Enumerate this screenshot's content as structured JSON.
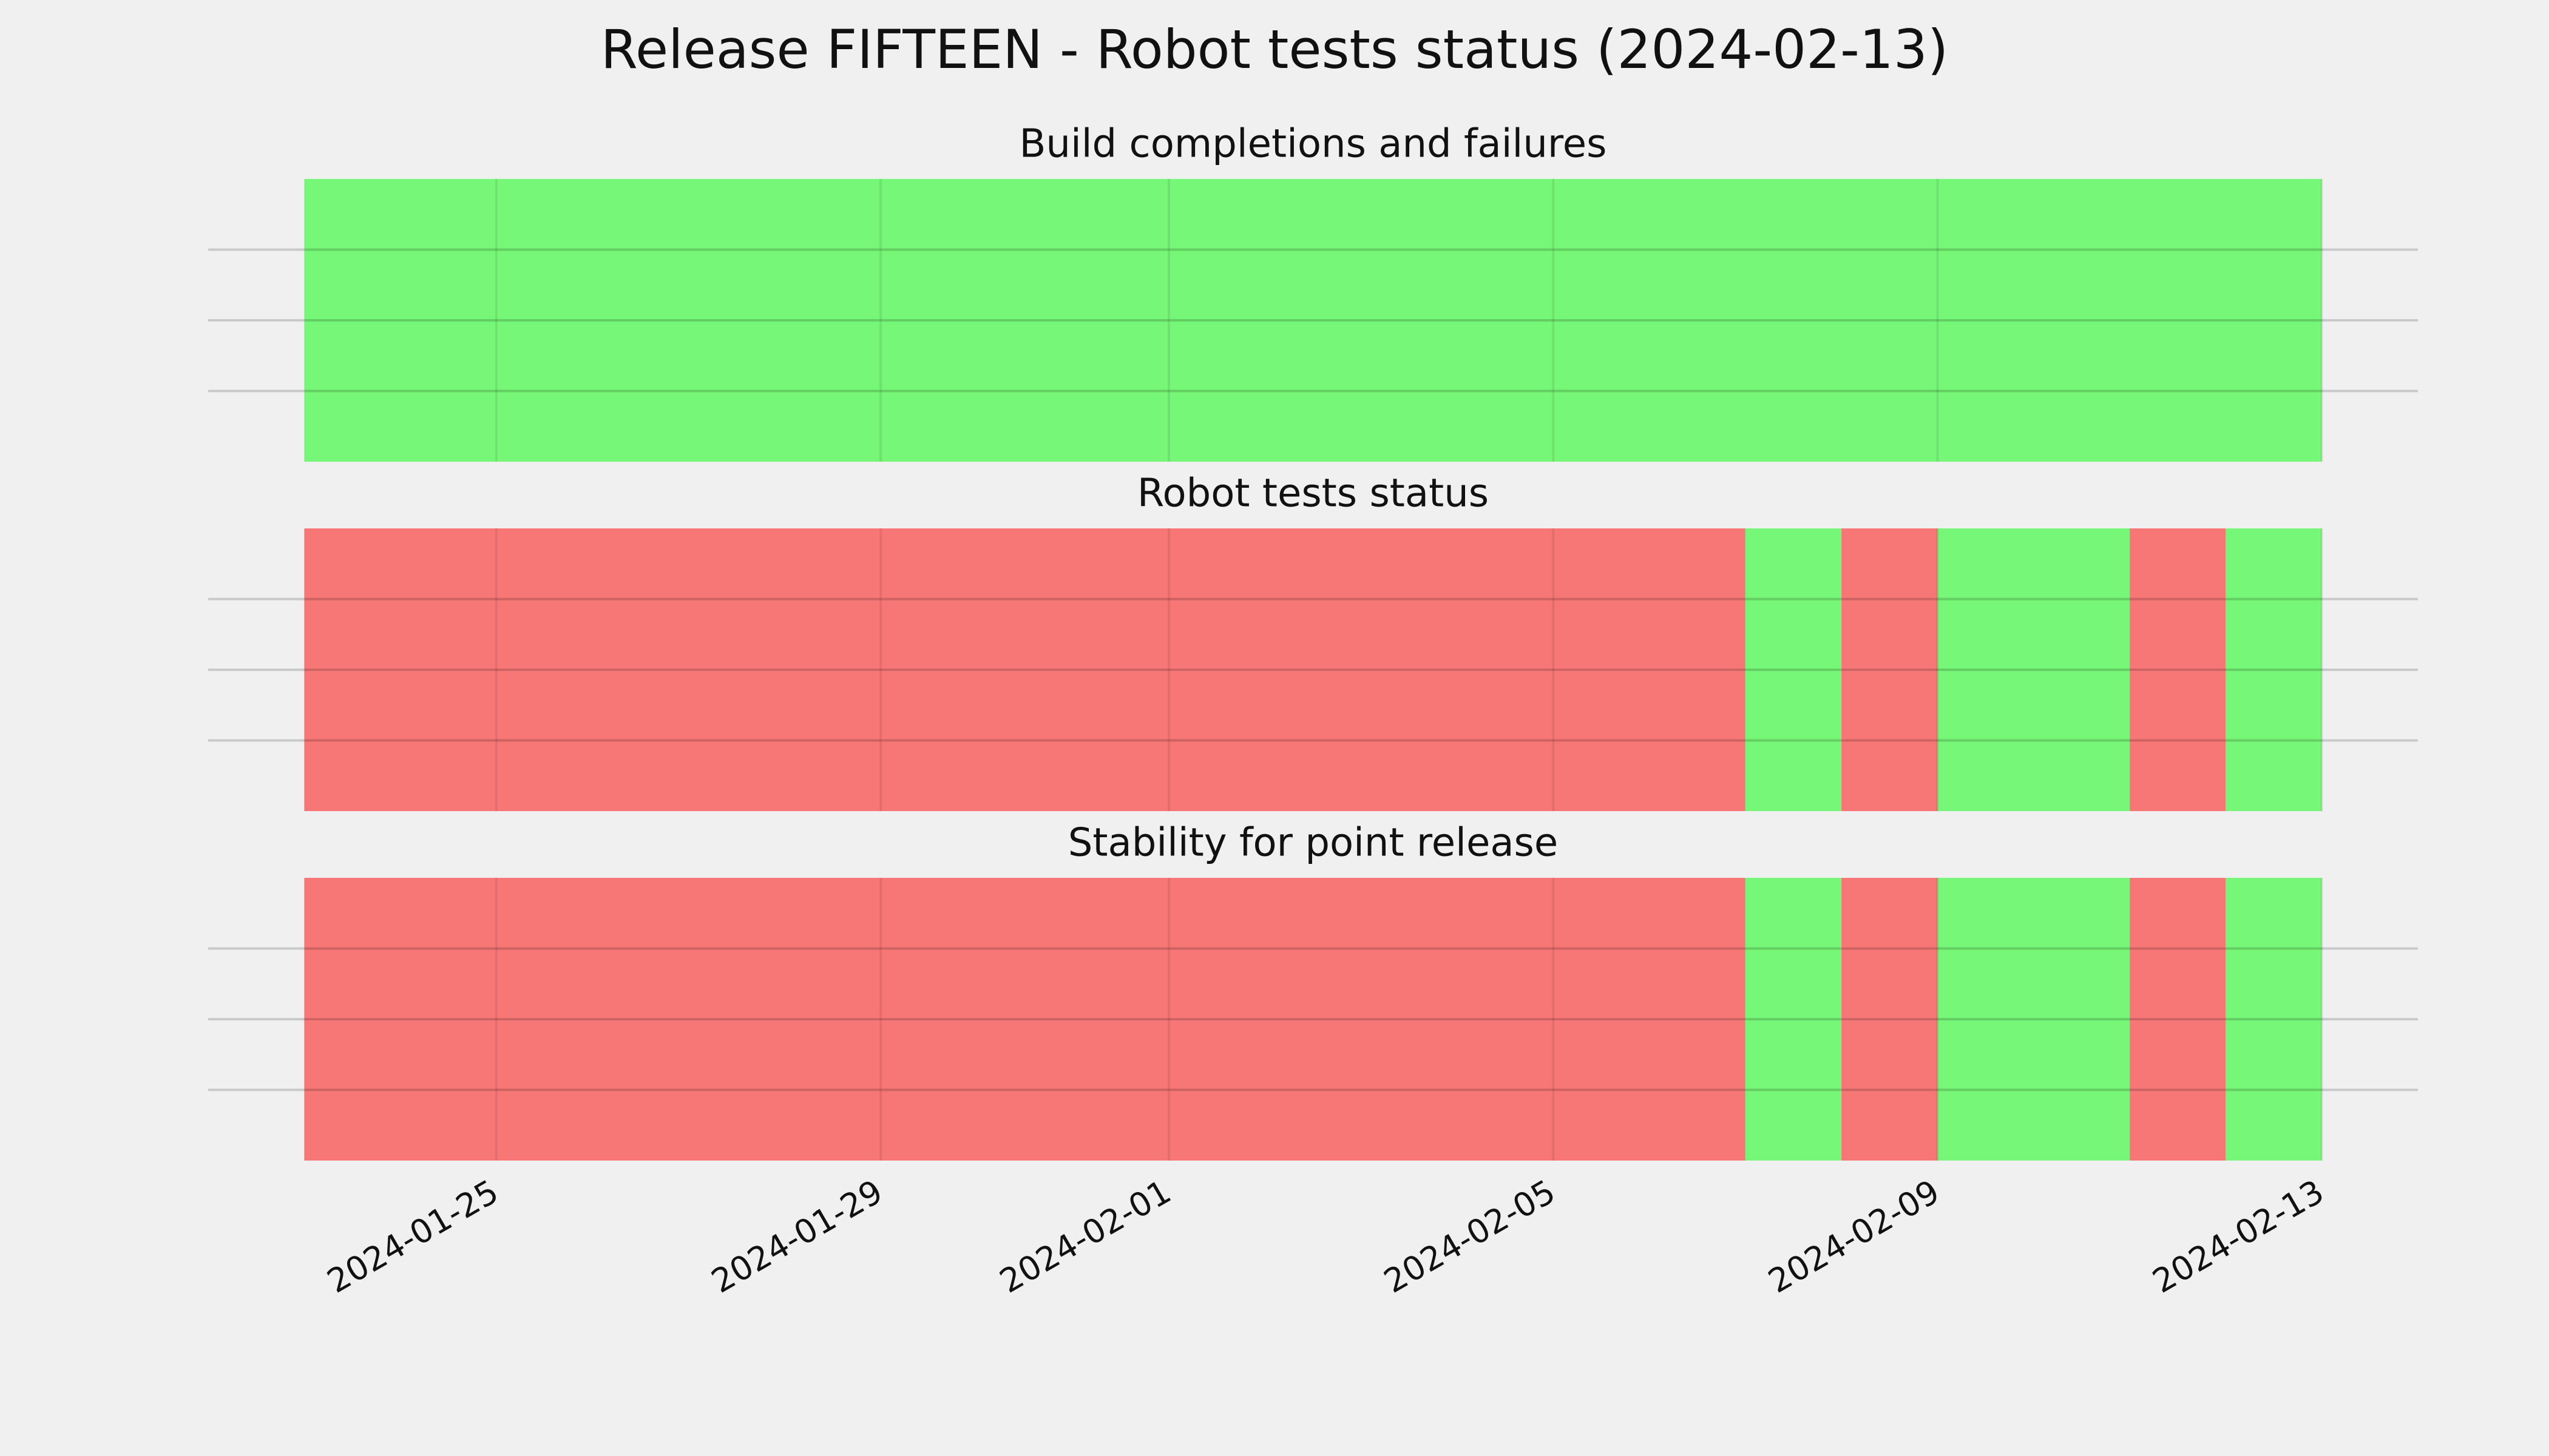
{
  "title": "Release FIFTEEN - Robot tests status (2024-02-13)",
  "chart_data": [
    {
      "type": "timeline",
      "title": "Build completions and failures",
      "xlim": [
        "2024-01-22",
        "2024-02-14"
      ],
      "xticks": [
        "2024-01-25",
        "2024-01-29",
        "2024-02-01",
        "2024-02-05",
        "2024-02-09",
        "2024-02-13"
      ],
      "ylim": [
        0,
        1
      ],
      "yticks": [
        0.25,
        0.5,
        0.75
      ],
      "grid": true,
      "spans": [
        {
          "start": "2024-01-23",
          "end": "2024-02-13",
          "color": "#77f777"
        }
      ]
    },
    {
      "type": "timeline",
      "title": "Robot tests status",
      "xlim": [
        "2024-01-22",
        "2024-02-14"
      ],
      "xticks": [
        "2024-01-25",
        "2024-01-29",
        "2024-02-01",
        "2024-02-05",
        "2024-02-09",
        "2024-02-13"
      ],
      "ylim": [
        0,
        1
      ],
      "yticks": [
        0.25,
        0.5,
        0.75
      ],
      "grid": true,
      "spans": [
        {
          "start": "2024-01-23",
          "end": "2024-02-07",
          "color": "#f77777"
        },
        {
          "start": "2024-02-07",
          "end": "2024-02-08",
          "color": "#77f777"
        },
        {
          "start": "2024-02-08",
          "end": "2024-02-09",
          "color": "#f77777"
        },
        {
          "start": "2024-02-09",
          "end": "2024-02-11",
          "color": "#77f777"
        },
        {
          "start": "2024-02-11",
          "end": "2024-02-12",
          "color": "#f77777"
        },
        {
          "start": "2024-02-12",
          "end": "2024-02-13",
          "color": "#77f777"
        }
      ]
    },
    {
      "type": "timeline",
      "title": "Stability for point release",
      "xlim": [
        "2024-01-22",
        "2024-02-14"
      ],
      "xticks": [
        "2024-01-25",
        "2024-01-29",
        "2024-02-01",
        "2024-02-05",
        "2024-02-09",
        "2024-02-13"
      ],
      "ylim": [
        0,
        1
      ],
      "yticks": [
        0.25,
        0.5,
        0.75
      ],
      "grid": true,
      "spans": [
        {
          "start": "2024-01-23",
          "end": "2024-02-07",
          "color": "#f77777"
        },
        {
          "start": "2024-02-07",
          "end": "2024-02-08",
          "color": "#77f777"
        },
        {
          "start": "2024-02-08",
          "end": "2024-02-09",
          "color": "#f77777"
        },
        {
          "start": "2024-02-09",
          "end": "2024-02-11",
          "color": "#77f777"
        },
        {
          "start": "2024-02-11",
          "end": "2024-02-12",
          "color": "#f77777"
        },
        {
          "start": "2024-02-12",
          "end": "2024-02-13",
          "color": "#77f777"
        }
      ]
    }
  ]
}
